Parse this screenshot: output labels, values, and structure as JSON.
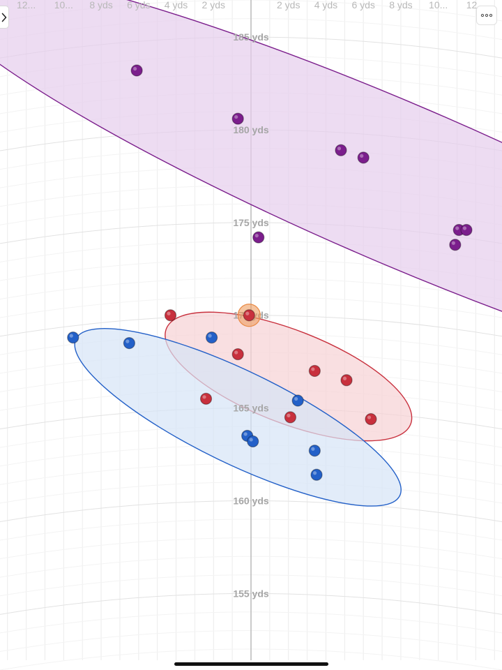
{
  "chart_data": {
    "type": "scatter",
    "title": "",
    "xlabel": "",
    "ylabel": "",
    "x_unit": "yds",
    "y_unit": "yds",
    "xlim": [
      -13.4,
      13.4
    ],
    "ylim": [
      151.4,
      187.0
    ],
    "grid": true,
    "x_ticks": [
      {
        "value": -12,
        "label": "12..."
      },
      {
        "value": -10,
        "label": "10..."
      },
      {
        "value": -8,
        "label": "8 yds"
      },
      {
        "value": -6,
        "label": "6 yds"
      },
      {
        "value": -4,
        "label": "4 yds"
      },
      {
        "value": -2,
        "label": "2 yds"
      },
      {
        "value": 2,
        "label": "2 yds"
      },
      {
        "value": 4,
        "label": "4 yds"
      },
      {
        "value": 6,
        "label": "6 yds"
      },
      {
        "value": 8,
        "label": "8 yds"
      },
      {
        "value": 10,
        "label": "10..."
      },
      {
        "value": 12,
        "label": "12..."
      }
    ],
    "y_ticks": [
      {
        "value": 185,
        "label": "185 yds"
      },
      {
        "value": 180,
        "label": "180 yds"
      },
      {
        "value": 175,
        "label": "175 yds"
      },
      {
        "value": 170,
        "label": "170 yds"
      },
      {
        "value": 165,
        "label": "165 yds"
      },
      {
        "value": 160,
        "label": "160 yds"
      },
      {
        "value": 155,
        "label": "155 yds"
      }
    ],
    "series": [
      {
        "color": "#7b1e8c",
        "fill": "#e6cdec",
        "ellipse": {
          "cx": 7.85,
          "cy": 177.1,
          "rx": 27.4,
          "ry": 4.3,
          "angle_deg": 23.2
        },
        "points": [
          {
            "x": -6.1,
            "y": 183.2
          },
          {
            "x": -0.7,
            "y": 180.6
          },
          {
            "x": 0.4,
            "y": 174.2
          },
          {
            "x": 4.8,
            "y": 178.9
          },
          {
            "x": 6.0,
            "y": 178.5
          },
          {
            "x": 10.9,
            "y": 173.8
          },
          {
            "x": 11.1,
            "y": 174.6
          },
          {
            "x": 11.5,
            "y": 174.6
          }
        ]
      },
      {
        "color": "#c8303d",
        "fill": "#f6d2d4",
        "ellipse": {
          "cx": 2.0,
          "cy": 166.7,
          "rx": 7.0,
          "ry": 2.5,
          "angle_deg": 21.3
        },
        "points": [
          {
            "x": -4.3,
            "y": 170.0
          },
          {
            "x": -0.1,
            "y": 170.0,
            "selected": true
          },
          {
            "x": -0.7,
            "y": 167.9
          },
          {
            "x": -2.4,
            "y": 165.5
          },
          {
            "x": 3.4,
            "y": 167.0
          },
          {
            "x": 5.1,
            "y": 166.5
          },
          {
            "x": 2.1,
            "y": 164.5
          },
          {
            "x": 6.4,
            "y": 164.4
          }
        ]
      },
      {
        "color": "#2360c8",
        "fill": "#d5e4f7",
        "ellipse": {
          "cx": -0.7,
          "cy": 164.5,
          "rx": 9.6,
          "ry": 2.5,
          "angle_deg": 25.8
        },
        "points": [
          {
            "x": -9.5,
            "y": 168.8
          },
          {
            "x": -6.5,
            "y": 168.5
          },
          {
            "x": -2.1,
            "y": 168.8
          },
          {
            "x": 2.5,
            "y": 165.4
          },
          {
            "x": -0.2,
            "y": 163.5
          },
          {
            "x": 0.1,
            "y": 163.2
          },
          {
            "x": 3.4,
            "y": 162.7
          },
          {
            "x": 3.5,
            "y": 161.4
          }
        ]
      }
    ]
  },
  "controls": {
    "sidebar_toggle_icon": "chevron-right-icon",
    "more_icon": "ellipsis-icon"
  }
}
